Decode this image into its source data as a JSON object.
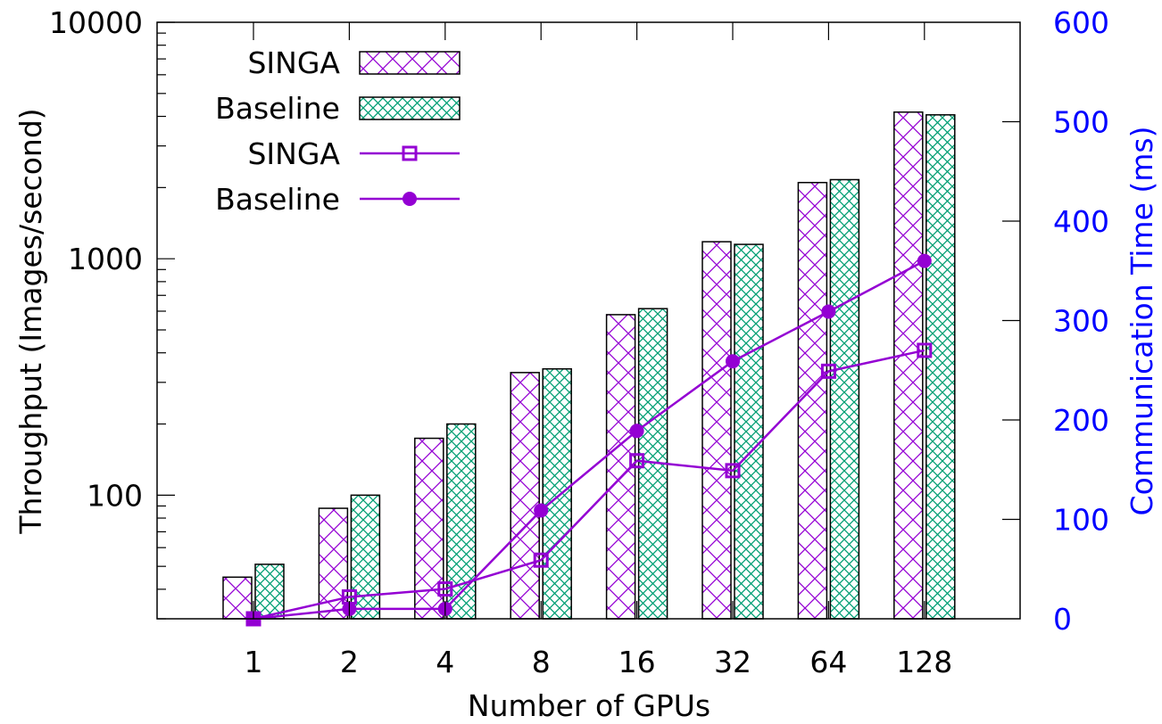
{
  "chart_data": {
    "type": "bar",
    "title": "",
    "xlabel": "Number of GPUs",
    "ylabel": "Throughput (Images/second)",
    "y2label": "Communication Time (ms)",
    "categories": [
      "1",
      "2",
      "4",
      "8",
      "16",
      "32",
      "64",
      "128"
    ],
    "yscale": "log",
    "ylim": [
      30,
      10000
    ],
    "yticks": [
      100,
      1000,
      10000
    ],
    "ytick_labels": [
      "100",
      "1000",
      "10000"
    ],
    "y2lim": [
      0,
      600
    ],
    "y2ticks": [
      0,
      100,
      200,
      300,
      400,
      500,
      600
    ],
    "y2tick_labels": [
      "0",
      "100",
      "200",
      "300",
      "400",
      "500",
      "600"
    ],
    "grid": false,
    "legend_position": "top-left",
    "series": [
      {
        "name": "SINGA",
        "kind": "bar",
        "axis": "left",
        "pattern": "sparse-crosshatch",
        "color": "#9400d3",
        "values": [
          45,
          88,
          174,
          330,
          580,
          1180,
          2100,
          4170
        ]
      },
      {
        "name": "Baseline",
        "kind": "bar",
        "axis": "left",
        "pattern": "dense-crosshatch",
        "color": "#009e73",
        "values": [
          51,
          100,
          200,
          342,
          615,
          1150,
          2160,
          4060
        ]
      },
      {
        "name": "SINGA",
        "kind": "line",
        "axis": "right",
        "marker": "open-square",
        "color": "#9400d3",
        "values": [
          0,
          22,
          30,
          59,
          159,
          149,
          249,
          270
        ]
      },
      {
        "name": "Baseline",
        "kind": "line",
        "axis": "right",
        "marker": "filled-circle",
        "color": "#9400d3",
        "values": [
          0,
          10,
          10,
          109,
          189,
          259,
          309,
          360
        ]
      }
    ]
  }
}
